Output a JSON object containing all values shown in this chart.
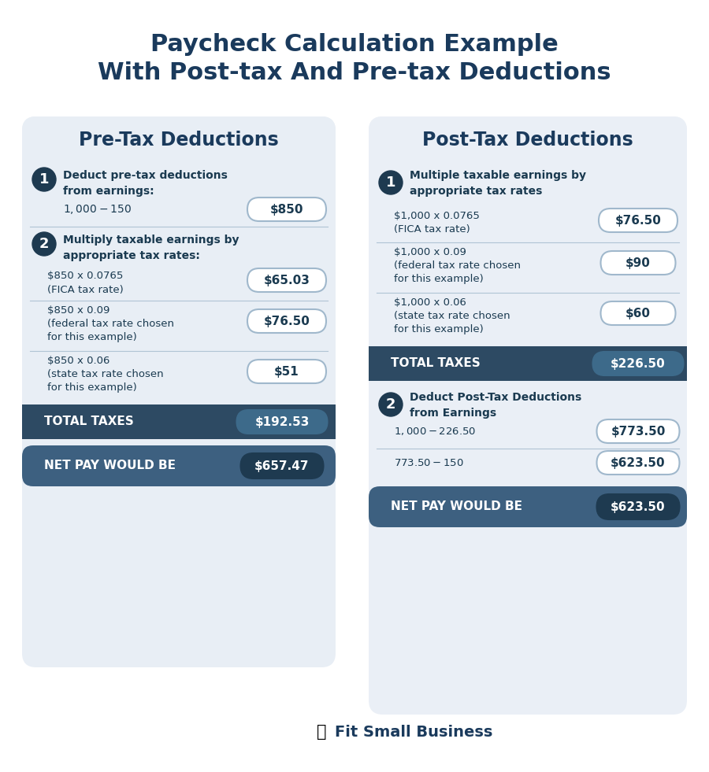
{
  "title_line1": "Paycheck Calculation Example",
  "title_line2": "With Post-tax And Pre-tax Deductions",
  "title_color": "#1a3a5c",
  "bg_color": "#ffffff",
  "card_bg_left": "#e8eef5",
  "card_bg_right": "#eaeff6",
  "dark_bar_color": "#2d4a63",
  "net_pay_bar_color": "#3d6080",
  "number_circle_color": "#1e3a50",
  "pill_border_color": "#a0b8cc",
  "pill_fill_color": "#ffffff",
  "pill_fill_dark": "#3d6a8a",
  "header_text_color": "#1a3a5c",
  "body_text_color": "#1a3a50",
  "white": "#ffffff",
  "separator_color": "#b0c4d4",
  "left_title": "Pre-Tax Deductions",
  "right_title": "Post-Tax Deductions",
  "left_step1_header": "Deduct pre-tax deductions\nfrom earnings:",
  "left_step1_row1_label": "$1,000 - $150",
  "left_step1_row1_value": "$850",
  "left_step2_header": "Multiply taxable earnings by\nappropriate tax rates:",
  "left_step2_row1_label": "$850 x 0.0765\n(FICA tax rate)",
  "left_step2_row1_value": "$65.03",
  "left_step2_row2_label": "$850 x 0.09\n(federal tax rate chosen\nfor this example)",
  "left_step2_row2_value": "$76.50",
  "left_step2_row3_label": "$850 x 0.06\n(state tax rate chosen\nfor this example)",
  "left_step2_row3_value": "$51",
  "left_total_label": "TOTAL TAXES",
  "left_total_value": "$192.53",
  "left_net_label": "NET PAY WOULD BE",
  "left_net_value": "$657.47",
  "right_step1_header": "Multiple taxable earnings by\nappropriate tax rates",
  "right_step1_row1_label": "$1,000 x 0.0765\n(FICA tax rate)",
  "right_step1_row1_value": "$76.50",
  "right_step1_row2_label": "$1,000 x 0.09\n(federal tax rate chosen\nfor this example)",
  "right_step1_row2_value": "$90",
  "right_step1_row3_label": "$1,000 x 0.06\n(state tax rate chosen\nfor this example)",
  "right_step1_row3_value": "$60",
  "right_total_label": "TOTAL TAXES",
  "right_total_value": "$226.50",
  "right_step2_header": "Deduct Post-Tax Deductions\nfrom Earnings",
  "right_step2_row1_label": "$1,000 - $226.50",
  "right_step2_row1_value": "$773.50",
  "right_step2_row2_label": "$773.50 - $150",
  "right_step2_row2_value": "$623.50",
  "right_net_label": "NET PAY WOULD BE",
  "right_net_value": "$623.50",
  "footer_text": "Fit Small Business"
}
